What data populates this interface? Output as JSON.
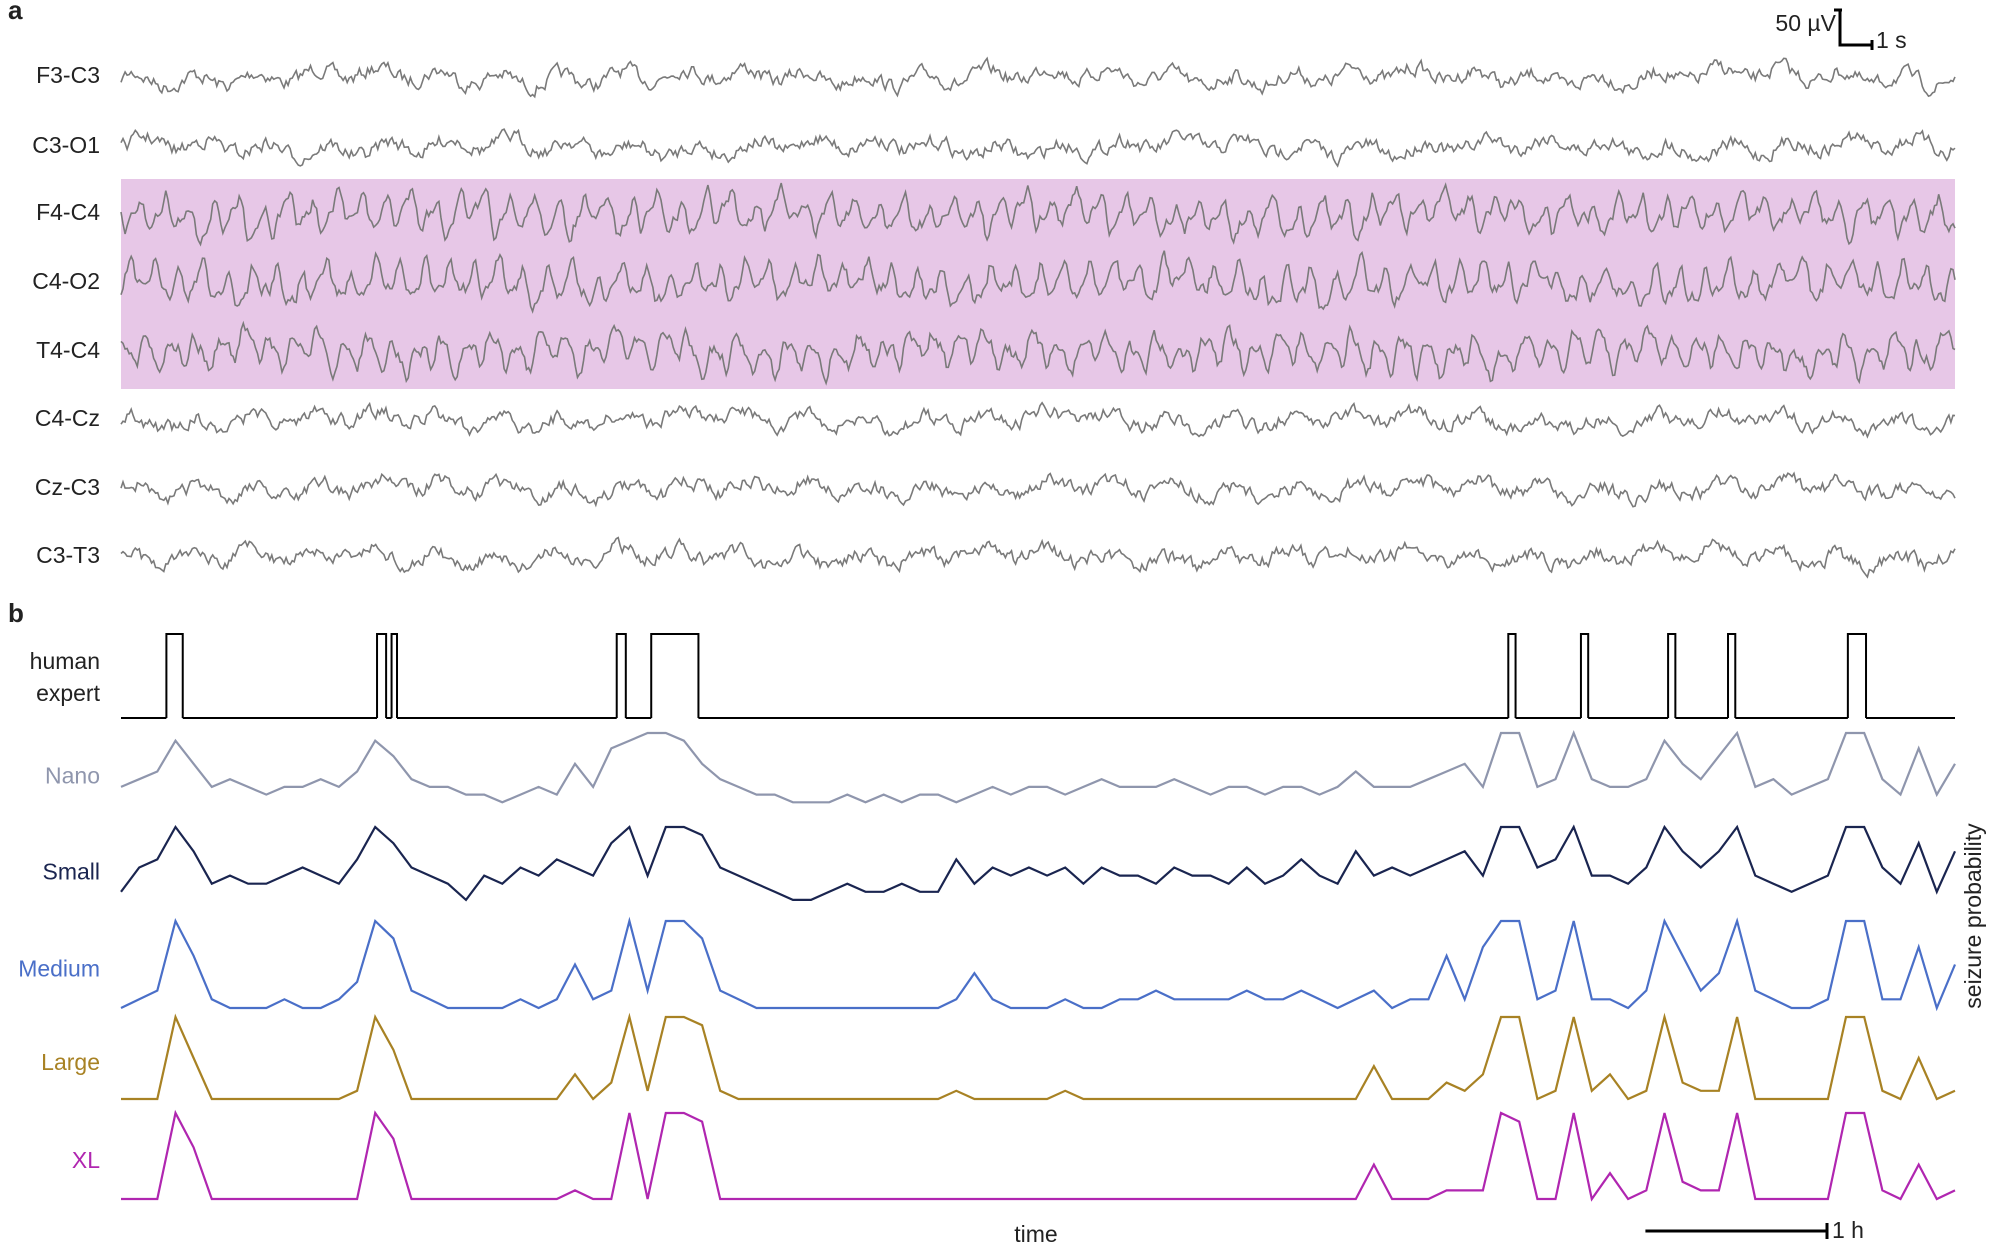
{
  "chart_data": [
    {
      "type": "eeg",
      "panel_label": "a",
      "channels": [
        "F3-C3",
        "C3-O1",
        "F4-C4",
        "C4-O2",
        "T4-C4",
        "C4-Cz",
        "Cz-C3",
        "C3-T3"
      ],
      "highlight_channels": [
        2,
        3,
        4
      ],
      "highlight_color": "#e7c7e7",
      "color": "#7a7a7a",
      "scalebar_labels": [
        "50 µV",
        "1 s"
      ]
    },
    {
      "type": "line",
      "panel_label": "b",
      "xlabel": "time",
      "ylabel": "seizure probability",
      "ylim": [
        0,
        1
      ],
      "xlim": [
        0,
        10.1
      ],
      "scalebar": {
        "value": 1,
        "label": "1 h"
      },
      "expert": {
        "name": [
          "human",
          "expert"
        ],
        "color": "#000000",
        "seizures": [
          [
            0.25,
            0.34
          ],
          [
            1.41,
            1.46
          ],
          [
            1.49,
            1.52
          ],
          [
            2.73,
            2.78
          ],
          [
            2.92,
            3.18
          ],
          [
            7.64,
            7.68
          ],
          [
            8.04,
            8.08
          ],
          [
            8.52,
            8.56
          ],
          [
            8.85,
            8.89
          ],
          [
            9.51,
            9.61
          ]
        ]
      },
      "x": [
        0,
        0.1,
        0.2,
        0.3,
        0.4,
        0.5,
        0.6,
        0.7,
        0.8,
        0.9,
        1,
        1.1,
        1.2,
        1.3,
        1.4,
        1.5,
        1.6,
        1.7,
        1.8,
        1.9,
        2,
        2.1,
        2.2,
        2.3,
        2.4,
        2.5,
        2.6,
        2.7,
        2.8,
        2.9,
        3,
        3.1,
        3.2,
        3.3,
        3.4,
        3.5,
        3.6,
        3.7,
        3.8,
        3.9,
        4,
        4.1,
        4.2,
        4.3,
        4.4,
        4.5,
        4.6,
        4.7,
        4.8,
        4.9,
        5,
        5.1,
        5.2,
        5.3,
        5.4,
        5.5,
        5.6,
        5.7,
        5.8,
        5.9,
        6,
        6.1,
        6.2,
        6.3,
        6.4,
        6.5,
        6.6,
        6.7,
        6.8,
        6.9,
        7,
        7.1,
        7.2,
        7.3,
        7.4,
        7.5,
        7.6,
        7.7,
        7.8,
        7.9,
        8,
        8.1,
        8.2,
        8.3,
        8.4,
        8.5,
        8.6,
        8.7,
        8.8,
        8.9,
        9,
        9.1,
        9.2,
        9.3,
        9.4,
        9.5,
        9.6,
        9.7,
        9.8,
        9.9,
        10,
        10.1
      ],
      "series": [
        {
          "name": "Nano",
          "color": "#8f96ad",
          "values": [
            0.3,
            0.4,
            0.5,
            0.9,
            0.6,
            0.3,
            0.4,
            0.3,
            0.2,
            0.3,
            0.3,
            0.4,
            0.3,
            0.5,
            0.9,
            0.7,
            0.4,
            0.3,
            0.3,
            0.2,
            0.2,
            0.1,
            0.2,
            0.3,
            0.2,
            0.6,
            0.3,
            0.8,
            0.9,
            1.0,
            1.0,
            0.9,
            0.6,
            0.4,
            0.3,
            0.2,
            0.2,
            0.1,
            0.1,
            0.1,
            0.2,
            0.1,
            0.2,
            0.1,
            0.2,
            0.2,
            0.1,
            0.2,
            0.3,
            0.2,
            0.3,
            0.3,
            0.2,
            0.3,
            0.4,
            0.3,
            0.3,
            0.3,
            0.4,
            0.3,
            0.2,
            0.3,
            0.3,
            0.2,
            0.3,
            0.3,
            0.2,
            0.3,
            0.5,
            0.3,
            0.3,
            0.3,
            0.4,
            0.5,
            0.6,
            0.3,
            1.0,
            1.0,
            0.3,
            0.4,
            1.0,
            0.4,
            0.3,
            0.3,
            0.4,
            0.9,
            0.6,
            0.4,
            0.7,
            1.0,
            0.3,
            0.4,
            0.2,
            0.3,
            0.4,
            1.0,
            1.0,
            0.4,
            0.2,
            0.8,
            0.2,
            0.6
          ]
        },
        {
          "name": "Small",
          "color": "#1a2550",
          "values": [
            0.2,
            0.5,
            0.6,
            1.0,
            0.7,
            0.3,
            0.4,
            0.3,
            0.3,
            0.4,
            0.5,
            0.4,
            0.3,
            0.6,
            1.0,
            0.8,
            0.5,
            0.4,
            0.3,
            0.1,
            0.4,
            0.3,
            0.5,
            0.4,
            0.6,
            0.5,
            0.4,
            0.8,
            1.0,
            0.4,
            1.0,
            1.0,
            0.9,
            0.5,
            0.4,
            0.3,
            0.2,
            0.1,
            0.1,
            0.2,
            0.3,
            0.2,
            0.2,
            0.3,
            0.2,
            0.2,
            0.6,
            0.3,
            0.5,
            0.4,
            0.5,
            0.4,
            0.5,
            0.3,
            0.5,
            0.4,
            0.4,
            0.3,
            0.5,
            0.4,
            0.4,
            0.3,
            0.5,
            0.3,
            0.4,
            0.6,
            0.4,
            0.3,
            0.7,
            0.4,
            0.5,
            0.4,
            0.5,
            0.6,
            0.7,
            0.4,
            1.0,
            1.0,
            0.5,
            0.6,
            1.0,
            0.4,
            0.4,
            0.3,
            0.5,
            1.0,
            0.7,
            0.5,
            0.7,
            1.0,
            0.4,
            0.3,
            0.2,
            0.3,
            0.4,
            1.0,
            1.0,
            0.5,
            0.3,
            0.8,
            0.2,
            0.7
          ]
        },
        {
          "name": "Medium",
          "color": "#4a6fc8",
          "values": [
            0,
            0.1,
            0.2,
            1.0,
            0.6,
            0.1,
            0,
            0,
            0,
            0.1,
            0,
            0,
            0.1,
            0.3,
            1.0,
            0.8,
            0.2,
            0.1,
            0,
            0,
            0,
            0,
            0.1,
            0,
            0.1,
            0.5,
            0.1,
            0.2,
            1.0,
            0.2,
            1.0,
            1.0,
            0.8,
            0.2,
            0.1,
            0,
            0,
            0,
            0,
            0,
            0,
            0,
            0,
            0,
            0,
            0,
            0.1,
            0.4,
            0.1,
            0,
            0,
            0,
            0.1,
            0,
            0,
            0.1,
            0.1,
            0.2,
            0.1,
            0.1,
            0.1,
            0.1,
            0.2,
            0.1,
            0.1,
            0.2,
            0.1,
            0,
            0.1,
            0.2,
            0,
            0.1,
            0.1,
            0.6,
            0.1,
            0.7,
            1.0,
            1.0,
            0.1,
            0.2,
            1.0,
            0.1,
            0.1,
            0,
            0.2,
            1.0,
            0.6,
            0.2,
            0.4,
            1.0,
            0.2,
            0.1,
            0,
            0,
            0.1,
            1.0,
            1.0,
            0.1,
            0.1,
            0.7,
            0,
            0.5
          ]
        },
        {
          "name": "Large",
          "color": "#a88224",
          "values": [
            0,
            0,
            0,
            1.0,
            0.5,
            0,
            0,
            0,
            0,
            0,
            0,
            0,
            0,
            0.1,
            1.0,
            0.6,
            0,
            0,
            0,
            0,
            0,
            0,
            0,
            0,
            0,
            0.3,
            0,
            0.2,
            1.0,
            0.1,
            1.0,
            1.0,
            0.9,
            0.1,
            0,
            0,
            0,
            0,
            0,
            0,
            0,
            0,
            0,
            0,
            0,
            0,
            0.1,
            0,
            0,
            0,
            0,
            0,
            0.1,
            0,
            0,
            0,
            0,
            0,
            0,
            0,
            0,
            0,
            0,
            0,
            0,
            0,
            0,
            0,
            0,
            0.4,
            0,
            0,
            0,
            0.2,
            0.1,
            0.3,
            1.0,
            1.0,
            0,
            0.1,
            1.0,
            0.1,
            0.3,
            0,
            0.1,
            1.0,
            0.2,
            0.1,
            0.1,
            1.0,
            0,
            0,
            0,
            0,
            0,
            1.0,
            1.0,
            0.1,
            0,
            0.5,
            0,
            0.1
          ]
        },
        {
          "name": "XL",
          "color": "#b026b0",
          "values": [
            0,
            0,
            0,
            1.0,
            0.6,
            0,
            0,
            0,
            0,
            0,
            0,
            0,
            0,
            0,
            1.0,
            0.7,
            0,
            0,
            0,
            0,
            0,
            0,
            0,
            0,
            0,
            0.1,
            0,
            0,
            1.0,
            0,
            1.0,
            1.0,
            0.9,
            0,
            0,
            0,
            0,
            0,
            0,
            0,
            0,
            0,
            0,
            0,
            0,
            0,
            0,
            0,
            0,
            0,
            0,
            0,
            0,
            0,
            0,
            0,
            0,
            0,
            0,
            0,
            0,
            0,
            0,
            0,
            0,
            0,
            0,
            0,
            0,
            0.4,
            0,
            0,
            0,
            0.1,
            0.1,
            0.1,
            1.0,
            0.9,
            0,
            0,
            1.0,
            0,
            0.3,
            0,
            0.1,
            1.0,
            0.2,
            0.1,
            0.1,
            1.0,
            0,
            0,
            0,
            0,
            0,
            1.0,
            1.0,
            0.1,
            0,
            0.4,
            0,
            0.1
          ]
        }
      ]
    }
  ]
}
